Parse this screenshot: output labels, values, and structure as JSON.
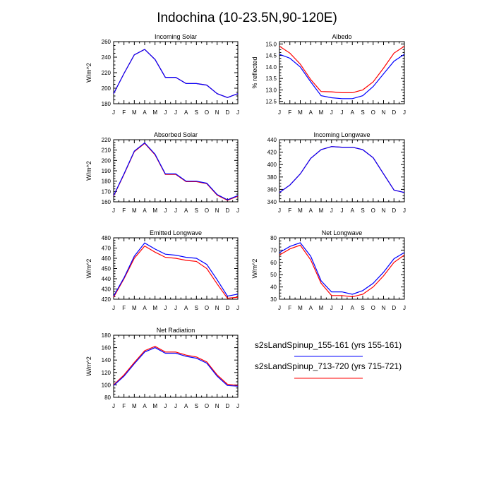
{
  "figure": {
    "title": "Indochina (10-23.5N,90-120E)"
  },
  "legend": [
    {
      "label": "s2sLandSpinup_155-161 (yrs 155-161)",
      "color": "#0000ff"
    },
    {
      "label": "s2sLandSpinup_713-720 (yrs 715-721)",
      "color": "#ff0000"
    }
  ],
  "chart_data": [
    {
      "type": "line",
      "title": "Incoming Solar",
      "ylabel": "W/m^2",
      "categories": [
        "J",
        "F",
        "M",
        "A",
        "M",
        "J",
        "J",
        "A",
        "S",
        "O",
        "N",
        "D",
        "J"
      ],
      "ylim": [
        180,
        260
      ],
      "yticks": [
        180,
        200,
        220,
        240,
        260
      ],
      "ytick_labels": [
        "180",
        "200",
        "220",
        "240",
        "260"
      ],
      "series": [
        {
          "name": "s2sLandSpinup_155-161 (yrs 155-161)",
          "color": "#0000ff",
          "values": [
            193,
            219,
            243,
            250,
            237,
            214,
            214,
            206,
            206,
            204,
            193,
            188,
            193
          ]
        },
        {
          "name": "s2sLandSpinup_713-720 (yrs 715-721)",
          "color": "#ff0000",
          "values": [
            193,
            219,
            243,
            250,
            237,
            214,
            214,
            206,
            206,
            204,
            193,
            188,
            193
          ]
        }
      ]
    },
    {
      "type": "line",
      "title": "Albedo",
      "ylabel": "% reflected",
      "categories": [
        "J",
        "F",
        "M",
        "A",
        "M",
        "J",
        "J",
        "A",
        "S",
        "O",
        "N",
        "D",
        "J"
      ],
      "ylim": [
        12.4,
        15.1
      ],
      "yticks": [
        12.5,
        13.0,
        13.5,
        14.0,
        14.5,
        15.0
      ],
      "ytick_labels": [
        "12.5",
        "13.0",
        "13.5",
        "14.0",
        "14.5",
        "15.0"
      ],
      "series": [
        {
          "name": "s2sLandSpinup_155-161 (yrs 155-161)",
          "color": "#0000ff",
          "values": [
            14.55,
            14.38,
            14.0,
            13.35,
            12.75,
            12.66,
            12.62,
            12.62,
            12.75,
            13.15,
            13.7,
            14.25,
            14.55
          ]
        },
        {
          "name": "s2sLandSpinup_713-720 (yrs 715-721)",
          "color": "#ff0000",
          "values": [
            14.9,
            14.6,
            14.12,
            13.45,
            12.93,
            12.92,
            12.88,
            12.88,
            13.0,
            13.35,
            13.95,
            14.6,
            14.9
          ]
        }
      ]
    },
    {
      "type": "line",
      "title": "Absorbed Solar",
      "ylabel": "W/m^2",
      "categories": [
        "J",
        "F",
        "M",
        "A",
        "M",
        "J",
        "J",
        "A",
        "S",
        "O",
        "N",
        "D",
        "J"
      ],
      "ylim": [
        160,
        220
      ],
      "yticks": [
        160,
        170,
        180,
        190,
        200,
        210,
        220
      ],
      "ytick_labels": [
        "160",
        "170",
        "180",
        "190",
        "200",
        "210",
        "220"
      ],
      "series": [
        {
          "name": "s2sLandSpinup_155-161 (yrs 155-161)",
          "color": "#0000ff",
          "values": [
            166,
            187,
            209,
            217,
            206,
            187,
            187,
            180,
            180,
            178,
            167,
            162,
            166
          ]
        },
        {
          "name": "s2sLandSpinup_713-720 (yrs 715-721)",
          "color": "#ff0000",
          "values": [
            165.5,
            186.5,
            208.5,
            216.5,
            205.5,
            186.5,
            186.5,
            179.5,
            179.5,
            177.5,
            166.5,
            161.5,
            165.5
          ]
        }
      ]
    },
    {
      "type": "line",
      "title": "Incoming Longwave",
      "ylabel": "",
      "categories": [
        "J",
        "F",
        "M",
        "A",
        "M",
        "J",
        "J",
        "A",
        "S",
        "O",
        "N",
        "D",
        "J"
      ],
      "ylim": [
        340,
        440
      ],
      "yticks": [
        340,
        360,
        380,
        400,
        420,
        440
      ],
      "ytick_labels": [
        "340",
        "360",
        "380",
        "400",
        "420",
        "440"
      ],
      "series": [
        {
          "name": "s2sLandSpinup_155-161 (yrs 155-161)",
          "color": "#0000ff",
          "values": [
            355,
            367,
            385,
            410,
            424,
            429,
            428,
            428,
            424,
            411,
            385,
            359,
            355
          ]
        },
        {
          "name": "s2sLandSpinup_713-720 (yrs 715-721)",
          "color": "#ff0000",
          "values": [
            355,
            367,
            385,
            410,
            424,
            429,
            428,
            428,
            424,
            411,
            385,
            359,
            355
          ]
        }
      ]
    },
    {
      "type": "line",
      "title": "Emitted Longwave",
      "ylabel": "W/m^2",
      "categories": [
        "J",
        "F",
        "M",
        "A",
        "M",
        "J",
        "J",
        "A",
        "S",
        "O",
        "N",
        "D",
        "J"
      ],
      "ylim": [
        420,
        480
      ],
      "yticks": [
        420,
        430,
        440,
        450,
        460,
        470,
        480
      ],
      "ytick_labels": [
        "420",
        "430",
        "440",
        "450",
        "460",
        "470",
        "480"
      ],
      "series": [
        {
          "name": "s2sLandSpinup_155-161 (yrs 155-161)",
          "color": "#0000ff",
          "values": [
            423,
            441,
            462,
            475,
            469,
            464,
            463,
            461,
            460,
            454,
            439,
            423,
            425
          ]
        },
        {
          "name": "s2sLandSpinup_713-720 (yrs 715-721)",
          "color": "#ff0000",
          "values": [
            422,
            440,
            460,
            472,
            466,
            461,
            460,
            458,
            457,
            450,
            435,
            421,
            422
          ]
        }
      ]
    },
    {
      "type": "line",
      "title": "Net Longwave",
      "ylabel": "W/m^2",
      "categories": [
        "J",
        "F",
        "M",
        "A",
        "M",
        "J",
        "J",
        "A",
        "S",
        "O",
        "N",
        "D",
        "J"
      ],
      "ylim": [
        30,
        80
      ],
      "yticks": [
        30,
        40,
        50,
        60,
        70,
        80
      ],
      "ytick_labels": [
        "30",
        "40",
        "50",
        "60",
        "70",
        "80"
      ],
      "series": [
        {
          "name": "s2sLandSpinup_155-161 (yrs 155-161)",
          "color": "#0000ff",
          "values": [
            68,
            73,
            76,
            65,
            45,
            36,
            36,
            34,
            37,
            43,
            52,
            63,
            68
          ]
        },
        {
          "name": "s2sLandSpinup_713-720 (yrs 715-721)",
          "color": "#ff0000",
          "values": [
            66,
            71,
            74,
            62,
            43,
            33,
            33,
            32,
            34,
            40,
            49,
            60,
            66
          ]
        }
      ]
    },
    {
      "type": "line",
      "title": "Net Radiation",
      "ylabel": "W/m^2",
      "categories": [
        "J",
        "F",
        "M",
        "A",
        "M",
        "J",
        "J",
        "A",
        "S",
        "O",
        "N",
        "D",
        "J"
      ],
      "ylim": [
        80,
        180
      ],
      "yticks": [
        80,
        100,
        120,
        140,
        160,
        180
      ],
      "ytick_labels": [
        "80",
        "100",
        "120",
        "140",
        "160",
        "180"
      ],
      "series": [
        {
          "name": "s2sLandSpinup_155-161 (yrs 155-161)",
          "color": "#0000ff",
          "values": [
            99,
            114,
            134,
            153,
            160,
            151,
            151,
            146,
            143,
            135,
            114,
            99,
            98
          ]
        },
        {
          "name": "s2sLandSpinup_713-720 (yrs 715-721)",
          "color": "#ff0000",
          "values": [
            100,
            116,
            136,
            155,
            162,
            153,
            153,
            148,
            145,
            137,
            116,
            101,
            99
          ]
        }
      ]
    }
  ]
}
